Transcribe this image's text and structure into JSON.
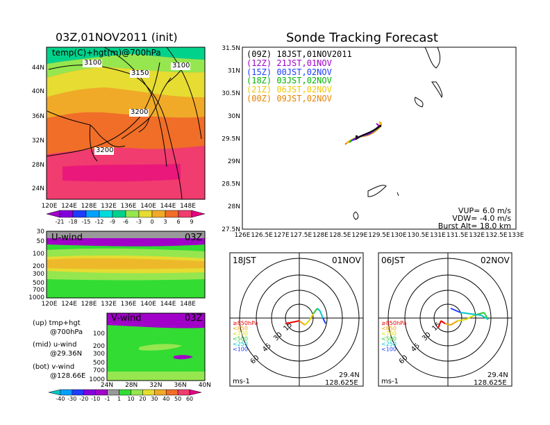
{
  "left": {
    "map_title": "03Z,01NOV2011 (init)",
    "map_label": "temp(C)+hgt(m)@700hPa",
    "contours": [
      "3100",
      "3150",
      "3100",
      "3200",
      "3200"
    ],
    "lat_ticks": [
      "44N",
      "40N",
      "36N",
      "32N",
      "28N",
      "24N"
    ],
    "lon_ticks": [
      "120E",
      "124E",
      "128E",
      "132E",
      "136E",
      "140E",
      "144E",
      "148E"
    ],
    "temp_cbar": [
      "-21",
      "-18",
      "-15",
      "-12",
      "-9",
      "-6",
      "-3",
      "0",
      "3",
      "6",
      "9"
    ],
    "temp_colors": [
      "#a000c8",
      "#8200dc",
      "#1e3cff",
      "#00a0ff",
      "#00dcdc",
      "#00d28c",
      "#96e650",
      "#e6dc32",
      "#f0aa28",
      "#f06e28",
      "#f03c6e",
      "#e60082"
    ],
    "uwind_title": "U-wind",
    "uwind_time": "03Z",
    "pres_ticks": [
      "30",
      "50",
      "100",
      "200",
      "300",
      "500",
      "700",
      "1000"
    ],
    "vwind_title": "V-wind",
    "vwind_time": "03Z",
    "vwind_pres_ticks": [
      "100",
      "200",
      "300",
      "500",
      "700",
      "1000"
    ],
    "vwind_lat_ticks": [
      "24N",
      "28N",
      "32N",
      "36N",
      "40N"
    ],
    "wind_cbar": [
      "-40",
      "-30",
      "-20",
      "-10",
      "-1",
      "1",
      "10",
      "20",
      "30",
      "40",
      "50",
      "60"
    ],
    "wind_colors": [
      "#00c8c8",
      "#00a0ff",
      "#1e3cff",
      "#8200dc",
      "#a000c8",
      "#999999",
      "#32dc32",
      "#96e650",
      "#e6dc32",
      "#f0aa28",
      "#f06e28",
      "#f03c6e",
      "#e60082"
    ],
    "legend": [
      {
        "line1": "(up) tmp+hgt",
        "line2": "@700hPa"
      },
      {
        "line1": "(mid) u-wind",
        "line2": "@29.36N"
      },
      {
        "line1": "(bot) v-wind",
        "line2": "@128.66E"
      }
    ]
  },
  "right": {
    "title": "Sonde Tracking Forecast",
    "lat_ticks": [
      "31.5N",
      "31N",
      "30.5N",
      "30N",
      "29.5N",
      "29N",
      "28.5N",
      "28N",
      "27.5N"
    ],
    "lon_ticks": [
      "126E",
      "126.5E",
      "127E",
      "127.5E",
      "128E",
      "128.5E",
      "129E",
      "129.5E",
      "130E",
      "130.5E",
      "131E",
      "131.5E",
      "132E",
      "132.5E",
      "133E"
    ],
    "launches": [
      {
        "code": "(09Z)",
        "label": "18JST,01NOV2011",
        "color": "#000000"
      },
      {
        "code": "(12Z)",
        "label": "21JST,01NOV",
        "color": "#a000c8"
      },
      {
        "code": "(15Z)",
        "label": "00JST,02NOV",
        "color": "#1e3cff"
      },
      {
        "code": "(18Z)",
        "label": "03JST,02NOV",
        "color": "#00b400"
      },
      {
        "code": "(21Z)",
        "label": "06JST,02NOV",
        "color": "#f0c800"
      },
      {
        "code": "(00Z)",
        "label": "09JST,02NOV",
        "color": "#e68200"
      }
    ],
    "params": {
      "vup": "VUP=  6.0 m/s",
      "vdw": "VDW= -4.0 m/s",
      "burst": "Burst Alt= 18.0 km"
    }
  },
  "hodographs": [
    {
      "time": "18JST",
      "date": "01NOV"
    },
    {
      "time": "06JST",
      "date": "02NOV"
    }
  ],
  "hodo_common": {
    "ring_labels": [
      "15",
      "30",
      "45",
      "60"
    ],
    "levels": [
      {
        "label": "≥850hPa",
        "color": "#e60000"
      },
      {
        "label": "<850",
        "color": "#f0a000"
      },
      {
        "label": "<700",
        "color": "#dcdc00"
      },
      {
        "label": "<500",
        "color": "#32c832"
      },
      {
        "label": "<250",
        "color": "#00c8c8"
      },
      {
        "label": "<100",
        "color": "#1e3cff"
      }
    ],
    "units": "ms-1",
    "lat": "29.4N",
    "lon": "128.625E"
  }
}
